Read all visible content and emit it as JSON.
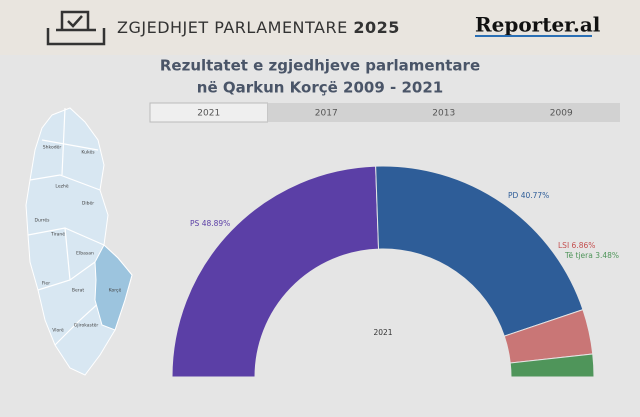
{
  "header": {
    "title": "ZGJEDHJET PARLAMENTARE",
    "year": "2025",
    "logo": "Reporter.al"
  },
  "tabs": [
    "2021",
    "2017",
    "2013",
    "2009"
  ],
  "map": {
    "regions": [
      "Shkodër",
      "Kukës",
      "Lezhë",
      "Dibër",
      "Durrës",
      "Tiranë",
      "Elbasan",
      "Fier",
      "Berat",
      "Korçë",
      "Vlorë",
      "Gjirokastër"
    ],
    "selected": 9
  },
  "chart_data": {
    "type": "semi-donut",
    "title": "Rezultatet e zgjedhjeve parlamentare",
    "subtitle": "në Qarkun Korçë 2009 - 2021",
    "center_label": "2021",
    "categories": [
      "PS",
      "PD",
      "LSI",
      "Të tjera"
    ],
    "values": [
      48.89,
      40.77,
      6.86,
      3.48
    ],
    "value_labels": [
      "48.89%",
      "40.77%",
      "6.86%",
      "3.48%"
    ],
    "colors": [
      "#5b3fa6",
      "#2e5d98",
      "#c97676",
      "#4f955a"
    ],
    "label_colors": [
      "#5b3fa6",
      "#2e5d98",
      "#c44f4f",
      "#4f955a"
    ]
  }
}
